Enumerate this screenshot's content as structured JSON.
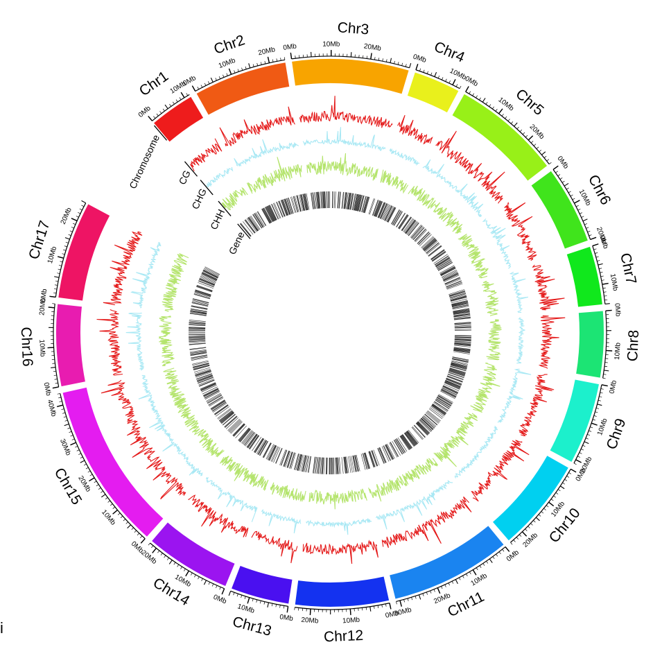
{
  "figure": {
    "panel_letter": "i",
    "track_labels": [
      "Chromosome",
      "CG",
      "CHG",
      "CHH",
      "Gene"
    ],
    "tick_unit": "Mb",
    "chromosomes": [
      {
        "name": "Chr1",
        "length_mb": 11.5,
        "color": "#ee1c1c",
        "ticks": [
          0,
          10
        ]
      },
      {
        "name": "Chr2",
        "length_mb": 24.0,
        "color": "#f05a14",
        "ticks": [
          0,
          10,
          20
        ]
      },
      {
        "name": "Chr3",
        "length_mb": 30.0,
        "color": "#f8a400",
        "ticks": [
          0,
          10,
          20
        ]
      },
      {
        "name": "Chr4",
        "length_mb": 12.0,
        "color": "#e9f01c",
        "ticks": [
          0,
          10
        ]
      },
      {
        "name": "Chr5",
        "length_mb": 28.0,
        "color": "#98f018",
        "ticks": [
          0,
          10,
          20
        ]
      },
      {
        "name": "Chr6",
        "length_mb": 20.0,
        "color": "#40e41c",
        "ticks": [
          0,
          10,
          20
        ]
      },
      {
        "name": "Chr7",
        "length_mb": 15.0,
        "color": "#10e81c",
        "ticks": [
          0,
          10
        ]
      },
      {
        "name": "Chr8",
        "length_mb": 17.0,
        "color": "#1ce474",
        "ticks": [
          0,
          10
        ]
      },
      {
        "name": "Chr9",
        "length_mb": 21.0,
        "color": "#1cf0cc",
        "ticks": [
          0,
          10,
          20
        ]
      },
      {
        "name": "Chr10",
        "length_mb": 24.0,
        "color": "#00d0f0",
        "ticks": [
          0,
          10,
          20
        ]
      },
      {
        "name": "Chr11",
        "length_mb": 31.0,
        "color": "#1a84f0",
        "ticks": [
          0,
          10,
          20,
          30
        ]
      },
      {
        "name": "Chr12",
        "length_mb": 24.0,
        "color": "#1432f0",
        "ticks": [
          0,
          10,
          20
        ]
      },
      {
        "name": "Chr13",
        "length_mb": 15.0,
        "color": "#4a10f0",
        "ticks": [
          0,
          10
        ]
      },
      {
        "name": "Chr14",
        "length_mb": 22.0,
        "color": "#9b14f0",
        "ticks": [
          0,
          10,
          20
        ]
      },
      {
        "name": "Chr15",
        "length_mb": 43.0,
        "color": "#e41cf0",
        "ticks": [
          0,
          10,
          20,
          30,
          40
        ]
      },
      {
        "name": "Chr16",
        "length_mb": 21.0,
        "color": "#e81cb0",
        "ticks": [
          0,
          10,
          20
        ]
      },
      {
        "name": "Chr17",
        "length_mb": 25.0,
        "color": "#ee1464",
        "ticks": [
          0,
          10,
          20
        ]
      }
    ],
    "tracks": [
      {
        "label": "CG",
        "color": "#e41818"
      },
      {
        "label": "CHG",
        "color": "#a8e8f4"
      },
      {
        "label": "CHH",
        "color": "#b4e46c"
      },
      {
        "label": "Gene",
        "color": "#000000"
      }
    ]
  }
}
